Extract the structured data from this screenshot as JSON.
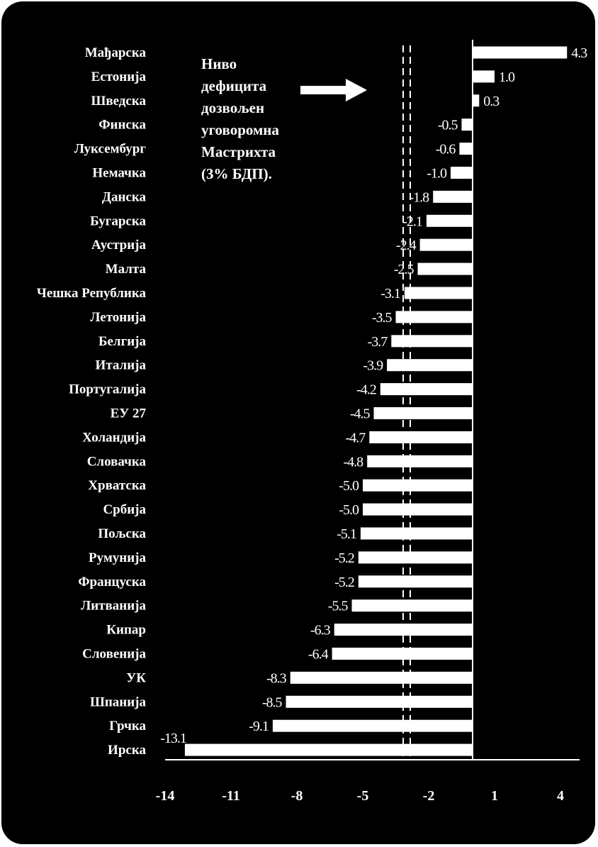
{
  "chart_data": {
    "type": "bar",
    "orientation": "horizontal",
    "categories": [
      "Мађарска",
      "Естонија",
      "Шведска",
      "Финска",
      "Луксембург",
      "Немачка",
      "Данска",
      "Бугарска",
      "Аустрија",
      "Малта",
      "Чешка Република",
      "Летонија",
      "Белгија",
      "Италија",
      "Португалија",
      "ЕУ 27",
      "Холандија",
      "Словачка",
      "Хрватска",
      "Србија",
      "Пољска",
      "Румунија",
      "Француска",
      "Литванија",
      "Кипар",
      "Словенија",
      "УК",
      "Шпанија",
      "Грчка",
      "Ирска"
    ],
    "values": [
      4.3,
      1.0,
      0.3,
      -0.5,
      -0.6,
      -1.0,
      -1.8,
      -2.1,
      -2.4,
      -2.5,
      -3.1,
      -3.5,
      -3.7,
      -3.9,
      -4.2,
      -4.5,
      -4.7,
      -4.8,
      -5.0,
      -5.0,
      -5.1,
      -5.2,
      -5.2,
      -5.5,
      -6.3,
      -6.4,
      -8.3,
      -8.5,
      -9.1,
      -13.1
    ],
    "value_labels": [
      "4.3",
      "1.0",
      "0.3",
      "-0.5",
      "-0.6",
      "-1.0",
      "-1.8",
      "-2.1",
      "-2.4",
      "-2.5",
      "-3.1",
      "-3.5",
      "-3.7",
      "-3.9",
      "-4.2",
      "-4.5",
      "-4.7",
      "-4.8",
      "-5.0",
      "-5.0",
      "-5.1",
      "-5.2",
      "-5.2",
      "-5.5",
      "-6.3",
      "-6.4",
      "-8.3",
      "-8.5",
      "-9.1",
      "-13.1"
    ],
    "xlim": [
      -14,
      4
    ],
    "xticks": [
      -14,
      -11,
      -8,
      -5,
      -2,
      1,
      4
    ],
    "xtick_labels": [
      "-14",
      "-11",
      "-8",
      "-5",
      "-2",
      "1",
      "4"
    ],
    "reference_line": {
      "value": -3,
      "style": "dashed"
    },
    "annotation": {
      "lines": [
        "Ниво",
        "дефицита",
        "дозвољен",
        "уговоромна",
        "Мастрихта",
        "(3% БДП)."
      ]
    },
    "grid": false,
    "legend": "none"
  },
  "colors": {
    "background": "#000000",
    "bars": "#ffffff",
    "text": "#ffffff"
  }
}
